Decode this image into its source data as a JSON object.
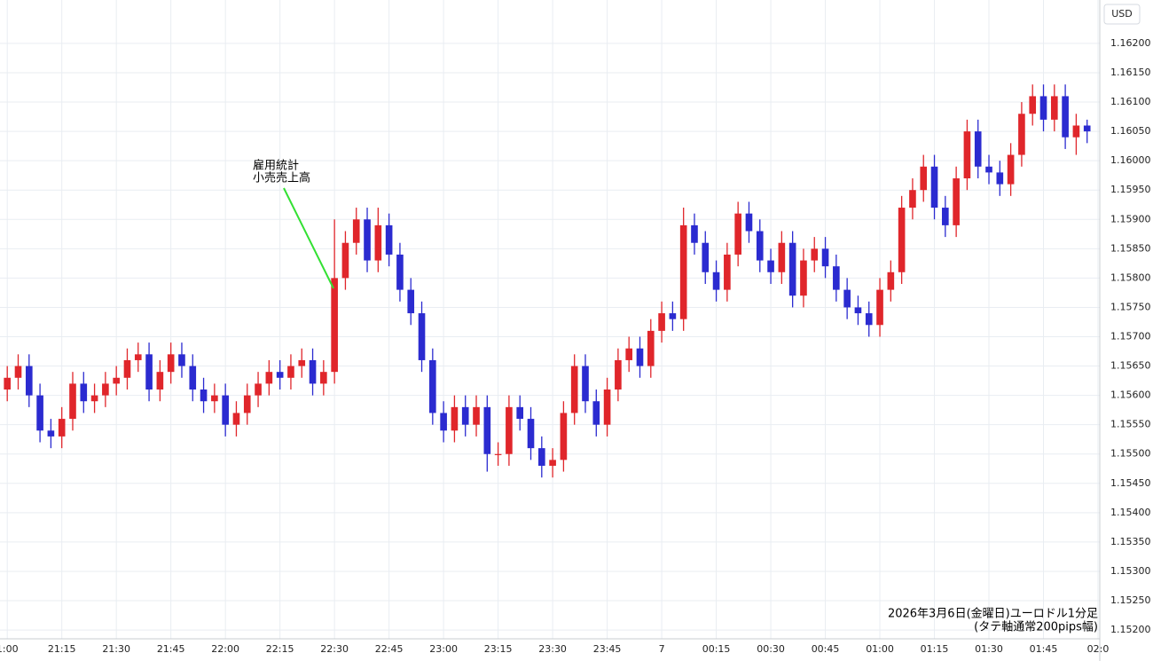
{
  "chart_data": {
    "type": "candlestick",
    "currency": "USD",
    "annotation": [
      "雇用統計",
      "小売売上高"
    ],
    "footnote": [
      "2026年3月6日(金曜日)ユーロドル1分足",
      "(タテ軸通常200pips幅)"
    ],
    "up_color": "#e0262b",
    "down_color": "#2b2bd0",
    "grid": true,
    "xlim": [
      "20:58",
      "02:00"
    ],
    "xticks": [
      {
        "value": "21:00",
        "label": "1:00"
      },
      "21:15",
      "21:30",
      "21:45",
      "22:00",
      "22:15",
      "22:30",
      "22:45",
      "23:00",
      "23:15",
      "23:30",
      "23:45",
      {
        "value": "00:00",
        "label": "7"
      },
      "00:15",
      "00:30",
      "00:45",
      "01:00",
      "01:15",
      "01:30",
      "01:45",
      {
        "value": "02:00",
        "label": "02:0"
      }
    ],
    "ylim": [
      1.15185,
      1.16274
    ],
    "yticks": [
      {
        "value": 1.152,
        "label": "1.15200"
      },
      {
        "value": 1.1525,
        "label": "1.15250"
      },
      {
        "value": 1.153,
        "label": "1.15300"
      },
      {
        "value": 1.1535,
        "label": "1.15350"
      },
      {
        "value": 1.154,
        "label": "1.15400"
      },
      {
        "value": 1.1545,
        "label": "1.15450"
      },
      {
        "value": 1.155,
        "label": "1.15500"
      },
      {
        "value": 1.1555,
        "label": "1.15550"
      },
      {
        "value": 1.156,
        "label": "1.15600"
      },
      {
        "value": 1.1565,
        "label": "1.15650"
      },
      {
        "value": 1.157,
        "label": "1.15700"
      },
      {
        "value": 1.1575,
        "label": "1.15750"
      },
      {
        "value": 1.158,
        "label": "1.15800"
      },
      {
        "value": 1.1585,
        "label": "1.15850"
      },
      {
        "value": 1.159,
        "label": "1.15900"
      },
      {
        "value": 1.1595,
        "label": "1.15950"
      },
      {
        "value": 1.16,
        "label": "1.16000"
      },
      {
        "value": 1.1605,
        "label": "1.16050"
      },
      {
        "value": 1.161,
        "label": "1.16100"
      },
      {
        "value": 1.1615,
        "label": "1.16150"
      },
      {
        "value": 1.162,
        "label": "1.16200"
      }
    ],
    "x": [
      "21:00",
      "21:03",
      "21:06",
      "21:09",
      "21:12",
      "21:15",
      "21:18",
      "21:21",
      "21:24",
      "21:27",
      "21:30",
      "21:33",
      "21:36",
      "21:39",
      "21:42",
      "21:45",
      "21:48",
      "21:51",
      "21:54",
      "21:57",
      "22:00",
      "22:03",
      "22:06",
      "22:09",
      "22:12",
      "22:15",
      "22:18",
      "22:21",
      "22:24",
      "22:27",
      "22:30",
      "22:33",
      "22:36",
      "22:39",
      "22:42",
      "22:45",
      "22:48",
      "22:51",
      "22:54",
      "22:57",
      "23:00",
      "23:03",
      "23:06",
      "23:09",
      "23:12",
      "23:15",
      "23:18",
      "23:21",
      "23:24",
      "23:27",
      "23:30",
      "23:33",
      "23:36",
      "23:39",
      "23:42",
      "23:45",
      "23:48",
      "23:51",
      "23:54",
      "23:57",
      "00:00",
      "00:03",
      "00:06",
      "00:09",
      "00:12",
      "00:15",
      "00:18",
      "00:21",
      "00:24",
      "00:27",
      "00:30",
      "00:33",
      "00:36",
      "00:39",
      "00:42",
      "00:45",
      "00:48",
      "00:51",
      "00:54",
      "00:57",
      "01:00",
      "01:03",
      "01:06",
      "01:09",
      "01:12",
      "01:15",
      "01:18",
      "01:21",
      "01:24",
      "01:27",
      "01:30",
      "01:33",
      "01:36",
      "01:39",
      "01:42",
      "01:45",
      "01:48",
      "01:51",
      "01:54",
      "01:57"
    ],
    "open": [
      1.1561,
      1.1563,
      1.1565,
      1.156,
      1.1554,
      1.1553,
      1.1556,
      1.1562,
      1.1559,
      1.156,
      1.1562,
      1.1563,
      1.1566,
      1.1567,
      1.1561,
      1.1564,
      1.1567,
      1.1565,
      1.1561,
      1.1559,
      1.156,
      1.1555,
      1.1557,
      1.156,
      1.1562,
      1.1564,
      1.1563,
      1.1565,
      1.1566,
      1.1562,
      1.1564,
      1.158,
      1.1586,
      1.159,
      1.1583,
      1.1589,
      1.1584,
      1.1578,
      1.1574,
      1.1566,
      1.1557,
      1.1554,
      1.1558,
      1.1555,
      1.1558,
      1.155,
      1.155,
      1.1558,
      1.1556,
      1.1551,
      1.1548,
      1.1549,
      1.1557,
      1.1565,
      1.1559,
      1.1555,
      1.1561,
      1.1566,
      1.1568,
      1.1565,
      1.1571,
      1.1574,
      1.1573,
      1.1589,
      1.1586,
      1.1581,
      1.1578,
      1.1584,
      1.1591,
      1.1588,
      1.1583,
      1.1581,
      1.1586,
      1.1577,
      1.1583,
      1.1585,
      1.1582,
      1.1578,
      1.1575,
      1.1574,
      1.1572,
      1.1578,
      1.1581,
      1.1592,
      1.1595,
      1.1599,
      1.1592,
      1.1589,
      1.1597,
      1.1605,
      1.1599,
      1.1598,
      1.1596,
      1.1601,
      1.1608,
      1.1611,
      1.1607,
      1.1611,
      1.1604,
      1.1606
    ],
    "high": [
      1.1565,
      1.1567,
      1.1567,
      1.1562,
      1.1556,
      1.1558,
      1.1564,
      1.1564,
      1.1562,
      1.1564,
      1.1565,
      1.1568,
      1.1569,
      1.1569,
      1.1566,
      1.1569,
      1.1569,
      1.1567,
      1.1563,
      1.1562,
      1.1562,
      1.1559,
      1.1562,
      1.1564,
      1.1566,
      1.1566,
      1.1567,
      1.1568,
      1.1568,
      1.1566,
      1.159,
      1.1588,
      1.1592,
      1.1592,
      1.1592,
      1.1591,
      1.1586,
      1.158,
      1.1576,
      1.1568,
      1.1559,
      1.156,
      1.156,
      1.156,
      1.156,
      1.1552,
      1.156,
      1.156,
      1.1558,
      1.1553,
      1.1551,
      1.1559,
      1.1567,
      1.1567,
      1.1561,
      1.1563,
      1.1568,
      1.157,
      1.157,
      1.1573,
      1.1576,
      1.1576,
      1.1592,
      1.1591,
      1.1588,
      1.1583,
      1.1586,
      1.1593,
      1.1593,
      1.159,
      1.1585,
      1.1588,
      1.1588,
      1.1585,
      1.1587,
      1.1587,
      1.1584,
      1.158,
      1.1577,
      1.1576,
      1.158,
      1.1583,
      1.1594,
      1.1597,
      1.1601,
      1.1601,
      1.1594,
      1.1599,
      1.1607,
      1.1607,
      1.1601,
      1.16,
      1.1603,
      1.161,
      1.1613,
      1.1613,
      1.1613,
      1.1613,
      1.1608,
      1.1607
    ],
    "low": [
      1.1559,
      1.1561,
      1.1558,
      1.1552,
      1.1551,
      1.1551,
      1.1554,
      1.1557,
      1.1557,
      1.1558,
      1.156,
      1.1561,
      1.1564,
      1.1559,
      1.1559,
      1.1562,
      1.1563,
      1.1559,
      1.1557,
      1.1557,
      1.1553,
      1.1553,
      1.1555,
      1.1558,
      1.156,
      1.1561,
      1.1561,
      1.1563,
      1.156,
      1.156,
      1.1562,
      1.1578,
      1.1584,
      1.1581,
      1.1581,
      1.1582,
      1.1576,
      1.1572,
      1.1564,
      1.1555,
      1.1552,
      1.1552,
      1.1553,
      1.1553,
      1.1547,
      1.1548,
      1.1548,
      1.1554,
      1.1549,
      1.1546,
      1.1546,
      1.1547,
      1.1555,
      1.1557,
      1.1553,
      1.1553,
      1.1559,
      1.1564,
      1.1563,
      1.1563,
      1.1569,
      1.1571,
      1.1571,
      1.1584,
      1.1579,
      1.1576,
      1.1576,
      1.1582,
      1.1586,
      1.1581,
      1.1579,
      1.1579,
      1.1575,
      1.1575,
      1.1581,
      1.158,
      1.1576,
      1.1573,
      1.1572,
      1.157,
      1.157,
      1.1576,
      1.1579,
      1.159,
      1.1593,
      1.159,
      1.1587,
      1.1587,
      1.1595,
      1.1597,
      1.1596,
      1.1594,
      1.1594,
      1.1599,
      1.1606,
      1.1605,
      1.1605,
      1.1602,
      1.1601,
      1.1603
    ],
    "close": [
      1.1563,
      1.1565,
      1.156,
      1.1554,
      1.1553,
      1.1556,
      1.1562,
      1.1559,
      1.156,
      1.1562,
      1.1563,
      1.1566,
      1.1567,
      1.1561,
      1.1564,
      1.1567,
      1.1565,
      1.1561,
      1.1559,
      1.156,
      1.1555,
      1.1557,
      1.156,
      1.1562,
      1.1564,
      1.1563,
      1.1565,
      1.1566,
      1.1562,
      1.1564,
      1.158,
      1.1586,
      1.159,
      1.1583,
      1.1589,
      1.1584,
      1.1578,
      1.1574,
      1.1566,
      1.1557,
      1.1554,
      1.1558,
      1.1555,
      1.1558,
      1.155,
      1.155,
      1.1558,
      1.1556,
      1.1551,
      1.1548,
      1.1549,
      1.1557,
      1.1565,
      1.1559,
      1.1555,
      1.1561,
      1.1566,
      1.1568,
      1.1565,
      1.1571,
      1.1574,
      1.1573,
      1.1589,
      1.1586,
      1.1581,
      1.1578,
      1.1584,
      1.1591,
      1.1588,
      1.1583,
      1.1581,
      1.1586,
      1.1577,
      1.1583,
      1.1585,
      1.1582,
      1.1578,
      1.1575,
      1.1574,
      1.1572,
      1.1578,
      1.1581,
      1.1592,
      1.1595,
      1.1599,
      1.1592,
      1.1589,
      1.1597,
      1.1605,
      1.1599,
      1.1598,
      1.1596,
      1.1601,
      1.1608,
      1.1611,
      1.1607,
      1.1611,
      1.1604,
      1.1606,
      1.1605
    ]
  }
}
